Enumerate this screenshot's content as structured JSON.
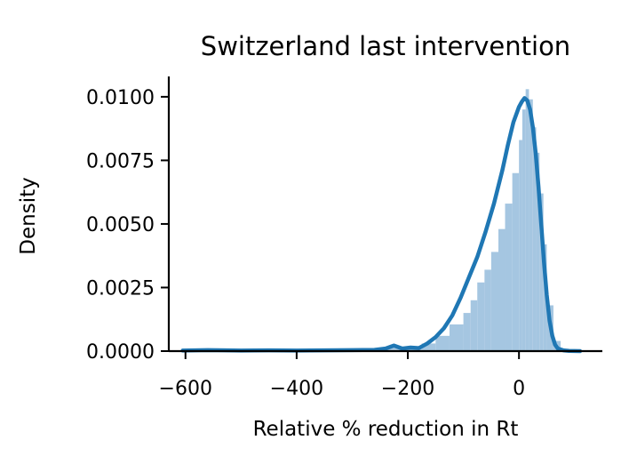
{
  "chart_data": {
    "type": "histogram+kde",
    "title": "Switzerland last intervention",
    "xlabel": "Relative % reduction in Rt",
    "ylabel": "Density",
    "xlim": [
      -630,
      150
    ],
    "ylim": [
      0,
      0.0108
    ],
    "x_ticks": [
      -600,
      -400,
      -200,
      0
    ],
    "x_tick_labels": [
      "−600",
      "−400",
      "−200",
      "0"
    ],
    "y_ticks": [
      0,
      0.0025,
      0.005,
      0.0075,
      0.01
    ],
    "y_tick_labels": [
      "0.0000",
      "0.0025",
      "0.0050",
      "0.0075",
      "0.0100"
    ],
    "histogram": {
      "color": "#a5c6e1",
      "bins": [
        {
          "x0": -610,
          "x1": -250,
          "y": 2e-05
        },
        {
          "x0": -250,
          "x1": -200,
          "y": 0.00012
        },
        {
          "x0": -200,
          "x1": -175,
          "y": 0.00015
        },
        {
          "x0": -175,
          "x1": -150,
          "y": 0.0003
        },
        {
          "x0": -150,
          "x1": -125,
          "y": 0.0006
        },
        {
          "x0": -125,
          "x1": -100,
          "y": 0.00105
        },
        {
          "x0": -100,
          "x1": -87,
          "y": 0.0015
        },
        {
          "x0": -87,
          "x1": -75,
          "y": 0.002
        },
        {
          "x0": -75,
          "x1": -62,
          "y": 0.0027
        },
        {
          "x0": -62,
          "x1": -50,
          "y": 0.0032
        },
        {
          "x0": -50,
          "x1": -37,
          "y": 0.0039
        },
        {
          "x0": -37,
          "x1": -25,
          "y": 0.0048
        },
        {
          "x0": -25,
          "x1": -12,
          "y": 0.0058
        },
        {
          "x0": -12,
          "x1": 0,
          "y": 0.007
        },
        {
          "x0": 0,
          "x1": 6,
          "y": 0.0083
        },
        {
          "x0": 6,
          "x1": 12,
          "y": 0.0095
        },
        {
          "x0": 12,
          "x1": 18,
          "y": 0.0103
        },
        {
          "x0": 18,
          "x1": 25,
          "y": 0.0099
        },
        {
          "x0": 25,
          "x1": 31,
          "y": 0.0088
        },
        {
          "x0": 31,
          "x1": 37,
          "y": 0.0078
        },
        {
          "x0": 37,
          "x1": 44,
          "y": 0.0062
        },
        {
          "x0": 44,
          "x1": 50,
          "y": 0.0042
        },
        {
          "x0": 50,
          "x1": 62,
          "y": 0.0018
        },
        {
          "x0": 62,
          "x1": 75,
          "y": 0.0004
        },
        {
          "x0": 75,
          "x1": 100,
          "y": 4e-05
        }
      ]
    },
    "kde": {
      "color": "#1f77b4",
      "x": [
        -605,
        -560,
        -500,
        -450,
        -400,
        -350,
        -300,
        -260,
        -240,
        -225,
        -210,
        -195,
        -180,
        -165,
        -150,
        -135,
        -120,
        -105,
        -90,
        -75,
        -60,
        -45,
        -30,
        -20,
        -10,
        0,
        5,
        10,
        15,
        20,
        25,
        30,
        35,
        40,
        45,
        50,
        55,
        60,
        65,
        70,
        80,
        90,
        110
      ],
      "y": [
        2e-05,
        4e-05,
        2e-05,
        3e-05,
        2e-05,
        3e-05,
        4e-05,
        5e-05,
        0.0001,
        0.00022,
        0.0001,
        0.00014,
        0.00012,
        0.0003,
        0.00055,
        0.0009,
        0.0014,
        0.0021,
        0.0029,
        0.0037,
        0.0047,
        0.0058,
        0.0071,
        0.0081,
        0.009,
        0.0096,
        0.0098,
        0.00995,
        0.00985,
        0.0095,
        0.0088,
        0.0078,
        0.0065,
        0.005,
        0.0035,
        0.0022,
        0.0012,
        0.0006,
        0.00025,
        0.0001,
        3e-05,
        1e-05,
        0.0
      ]
    },
    "grid": false,
    "legend": "none"
  }
}
